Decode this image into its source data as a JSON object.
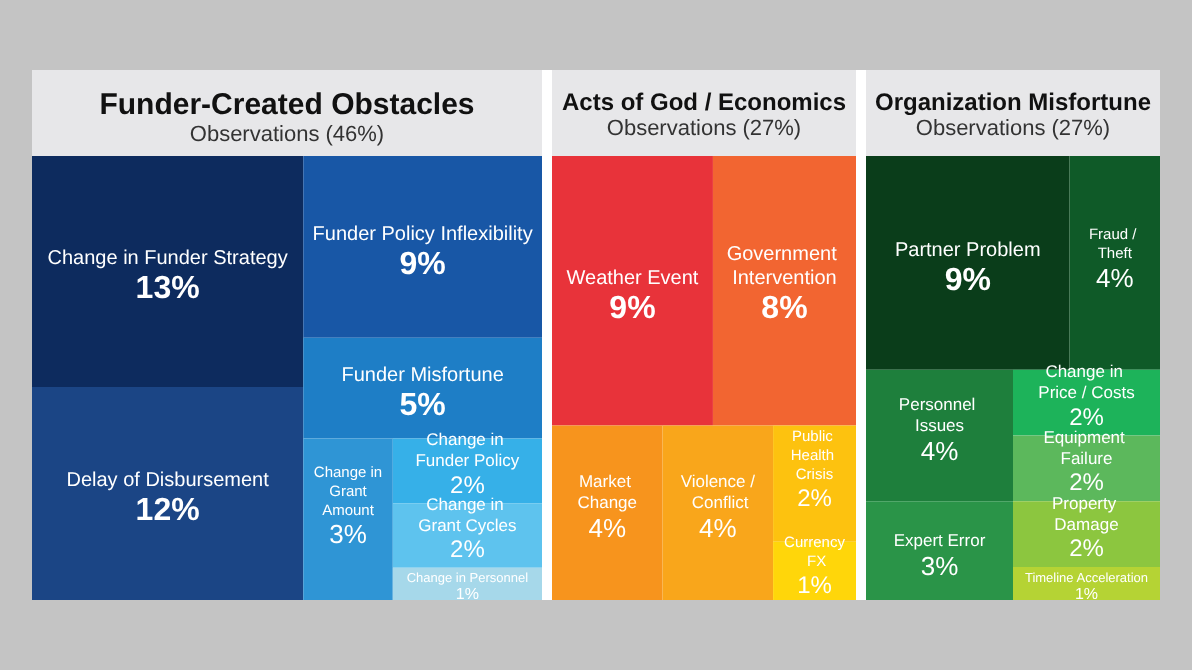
{
  "chart_data": [
    {
      "type": "other",
      "title": "Funder-Created Obstacles",
      "subtitle": "Observations (46%)",
      "categories": [
        "Change in Funder Strategy",
        "Delay of Disbursement",
        "Funder Policy Inflexibility",
        "Funder Misfortune",
        "Change in Grant Amount",
        "Change in Funder Policy",
        "Change in Grant Cycles",
        "Change in Personnel"
      ],
      "values": [
        13,
        12,
        9,
        5,
        3,
        2,
        2,
        1
      ],
      "value_labels": [
        "13%",
        "12%",
        "9%",
        "5%",
        "3%",
        "2%",
        "2%",
        "1%"
      ],
      "colors": [
        "#0d2b5e",
        "#1b4585",
        "#1857a6",
        "#1e7ec6",
        "#2f95d5",
        "#36b0e8",
        "#5ec3ee",
        "#a6d8ea"
      ]
    },
    {
      "type": "other",
      "title": "Acts of God / Economics",
      "subtitle": "Observations (27%)",
      "categories": [
        "Weather Event",
        "Government Intervention",
        "Market Change",
        "Violence / Conflict",
        "Public Health Crisis",
        "Currency FX"
      ],
      "values": [
        9,
        8,
        4,
        4,
        2,
        1
      ],
      "value_labels": [
        "9%",
        "8%",
        "4%",
        "4%",
        "2%",
        "1%"
      ],
      "colors": [
        "#e8333a",
        "#f26531",
        "#f7941d",
        "#f9a61b",
        "#fdc20f",
        "#ffd60a"
      ]
    },
    {
      "type": "other",
      "title": "Organization Misfortune",
      "subtitle": "Observations (27%)",
      "categories": [
        "Partner Problem",
        "Fraud / Theft",
        "Personnel Issues",
        "Expert Error",
        "Change in Price / Costs",
        "Equipment Failure",
        "Property Damage",
        "Timeline Acceleration"
      ],
      "values": [
        9,
        4,
        4,
        3,
        2,
        2,
        2,
        1
      ],
      "value_labels": [
        "9%",
        "4%",
        "4%",
        "3%",
        "2%",
        "2%",
        "2%",
        "1%"
      ],
      "colors": [
        "#0a3d1a",
        "#0f5a28",
        "#1e7f3c",
        "#2a9448",
        "#1db35a",
        "#5cb85c",
        "#8cc63f",
        "#b5d334"
      ]
    }
  ]
}
